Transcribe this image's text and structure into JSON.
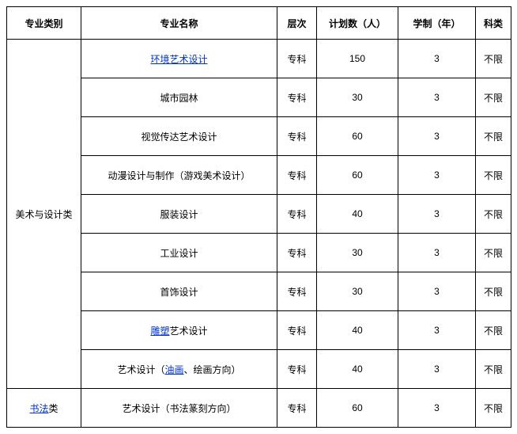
{
  "table": {
    "headers": {
      "category": "专业类别",
      "major": "专业名称",
      "level": "层次",
      "plan": "计划数（人）",
      "years": "学制（年）",
      "subject": "科类"
    },
    "category1": "美术与设计类",
    "category2_link": "书法",
    "category2_suffix": "类",
    "rows": [
      {
        "major_link": "环境艺术设计",
        "major_prefix": "",
        "major_suffix": "",
        "level": "专科",
        "plan": "150",
        "years": "3",
        "subject": "不限"
      },
      {
        "major_plain": "城市园林",
        "level": "专科",
        "plan": "30",
        "years": "3",
        "subject": "不限"
      },
      {
        "major_plain": "视觉传达艺术设计",
        "level": "专科",
        "plan": "60",
        "years": "3",
        "subject": "不限"
      },
      {
        "major_plain": "动漫设计与制作（游戏美术设计）",
        "level": "专科",
        "plan": "60",
        "years": "3",
        "subject": "不限"
      },
      {
        "major_plain": "服装设计",
        "level": "专科",
        "plan": "40",
        "years": "3",
        "subject": "不限"
      },
      {
        "major_plain": "工业设计",
        "level": "专科",
        "plan": "30",
        "years": "3",
        "subject": "不限"
      },
      {
        "major_plain": "首饰设计",
        "level": "专科",
        "plan": "30",
        "years": "3",
        "subject": "不限"
      },
      {
        "major_link": "雕塑",
        "major_prefix": "",
        "major_suffix": "艺术设计",
        "level": "专科",
        "plan": "40",
        "years": "3",
        "subject": "不限"
      },
      {
        "major_prefix": "艺术设计（",
        "major_link": "油画",
        "major_suffix": "、绘画方向）",
        "level": "专科",
        "plan": "40",
        "years": "3",
        "subject": "不限"
      },
      {
        "major_plain": "艺术设计（书法篆刻方向）",
        "level": "专科",
        "plan": "60",
        "years": "3",
        "subject": "不限"
      }
    ]
  }
}
